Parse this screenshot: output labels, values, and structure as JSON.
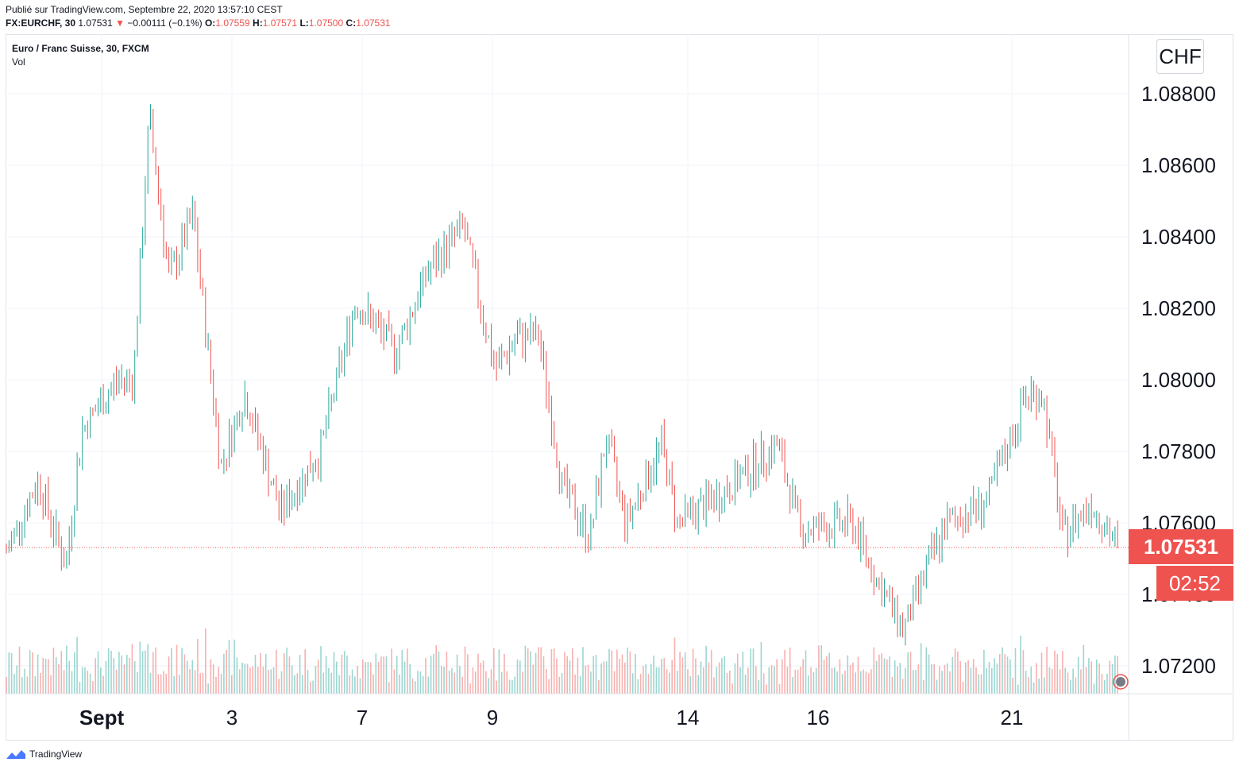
{
  "header": {
    "published": "Publié sur TradingView.com, Septembre 22, 2020 13:57:10 CEST",
    "symbol": "FX:EURCHF, 30",
    "last": "1.07531",
    "change_arrow": "▼",
    "change": "−0.00111 (−0.1%)",
    "o_label": "O:",
    "o_value": "1.07559",
    "h_label": "H:",
    "h_value": "1.07571",
    "l_label": "L:",
    "l_value": "1.07500",
    "c_label": "C:",
    "c_value": "1.07531"
  },
  "legend": {
    "title": "Euro / Franc Suisse, 30, FXCM",
    "volume_label": "Vol"
  },
  "currency": "CHF",
  "last_price_badge": "1.07531",
  "timer_badge": "02:52",
  "footer": {
    "brand": "TradingView",
    "logo_icon": "tradingview-logo-icon"
  },
  "colors": {
    "up": "#26a69a",
    "down": "#ef5350",
    "grid": "#f0f3fa",
    "axis_text": "#131722",
    "price_line": "#ef5350"
  },
  "chart_data": {
    "type": "candlestick",
    "x_ticks": [
      "Sept",
      "3",
      "7",
      "9",
      "14",
      "16",
      "21"
    ],
    "y_ticks": [
      "1.08800",
      "1.08600",
      "1.08400",
      "1.08200",
      "1.08000",
      "1.07800",
      "1.07600",
      "1.07400",
      "1.07200"
    ],
    "y_range": [
      1.0712,
      1.0895
    ],
    "last_price": 1.07531,
    "volume_series": "Vol",
    "price_path": [
      {
        "x": 0,
        "price": 1.0752
      },
      {
        "x": 40,
        "price": 1.0772
      },
      {
        "x": 75,
        "price": 1.0748
      },
      {
        "x": 95,
        "price": 1.0786
      },
      {
        "x": 140,
        "price": 1.08
      },
      {
        "x": 160,
        "price": 1.08
      },
      {
        "x": 180,
        "price": 1.0874
      },
      {
        "x": 205,
        "price": 1.0828
      },
      {
        "x": 235,
        "price": 1.0846
      },
      {
        "x": 270,
        "price": 1.0776
      },
      {
        "x": 300,
        "price": 1.0796
      },
      {
        "x": 345,
        "price": 1.0763
      },
      {
        "x": 395,
        "price": 1.078
      },
      {
        "x": 440,
        "price": 1.0822
      },
      {
        "x": 490,
        "price": 1.0808
      },
      {
        "x": 530,
        "price": 1.083
      },
      {
        "x": 575,
        "price": 1.0843
      },
      {
        "x": 615,
        "price": 1.0803
      },
      {
        "x": 645,
        "price": 1.0812
      },
      {
        "x": 670,
        "price": 1.0812
      },
      {
        "x": 700,
        "price": 1.077
      },
      {
        "x": 735,
        "price": 1.0756
      },
      {
        "x": 755,
        "price": 1.0784
      },
      {
        "x": 780,
        "price": 1.076
      },
      {
        "x": 825,
        "price": 1.0782
      },
      {
        "x": 845,
        "price": 1.076
      },
      {
        "x": 900,
        "price": 1.0768
      },
      {
        "x": 970,
        "price": 1.0782
      },
      {
        "x": 1000,
        "price": 1.0758
      },
      {
        "x": 1065,
        "price": 1.076
      },
      {
        "x": 1100,
        "price": 1.0742
      },
      {
        "x": 1130,
        "price": 1.073
      },
      {
        "x": 1160,
        "price": 1.0748
      },
      {
        "x": 1185,
        "price": 1.076
      },
      {
        "x": 1235,
        "price": 1.0766
      },
      {
        "x": 1285,
        "price": 1.0796
      },
      {
        "x": 1305,
        "price": 1.0796
      },
      {
        "x": 1330,
        "price": 1.0756
      },
      {
        "x": 1365,
        "price": 1.0766
      },
      {
        "x": 1400,
        "price": 1.0753
      }
    ]
  }
}
